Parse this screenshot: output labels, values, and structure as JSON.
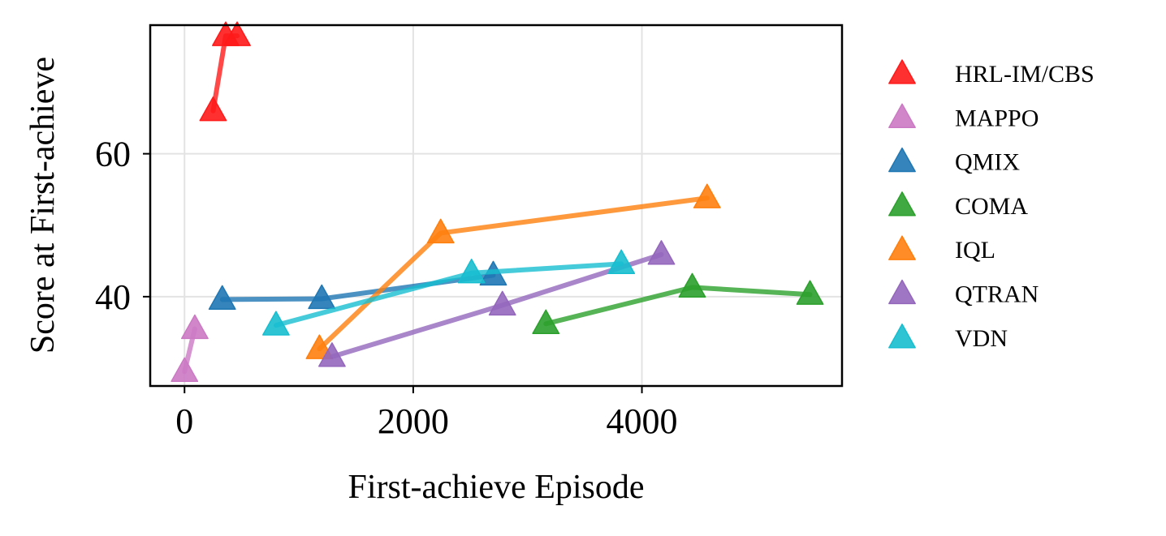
{
  "chart_data": {
    "type": "scatter",
    "xlabel": "First-achieve Episode",
    "ylabel": "Score at First-achieve",
    "xlim": [
      -300,
      5750
    ],
    "ylim": [
      27.5,
      78
    ],
    "xticks": [
      0,
      2000,
      4000
    ],
    "yticks": [
      40,
      60
    ],
    "xtick_labels": [
      "0",
      "2000",
      "4000"
    ],
    "ytick_labels": [
      "40",
      "60"
    ],
    "grid": true,
    "legend_placement": "outside-right",
    "marker": "triangle",
    "series": [
      {
        "name": "HRL-IM/CBS",
        "color": "#ff1a1a",
        "points": [
          [
            250,
            66
          ],
          [
            360,
            76.5
          ],
          [
            460,
            76.5
          ]
        ]
      },
      {
        "name": "MAPPO",
        "color": "#cc79c4",
        "points": [
          [
            0,
            29.5
          ],
          [
            90,
            35.5
          ]
        ]
      },
      {
        "name": "QMIX",
        "color": "#1f77b4",
        "points": [
          [
            330,
            39.6
          ],
          [
            1200,
            39.7
          ],
          [
            2700,
            43
          ]
        ]
      },
      {
        "name": "COMA",
        "color": "#2ca02c",
        "points": [
          [
            3160,
            36.2
          ],
          [
            4440,
            41.3
          ],
          [
            5470,
            40.3
          ]
        ]
      },
      {
        "name": "IQL",
        "color": "#ff7f0e",
        "points": [
          [
            1180,
            32.7
          ],
          [
            2240,
            48.9
          ],
          [
            4570,
            53.8
          ]
        ]
      },
      {
        "name": "QTRAN",
        "color": "#9467bd",
        "points": [
          [
            1290,
            31.6
          ],
          [
            2780,
            38.8
          ],
          [
            4170,
            45.9
          ]
        ]
      },
      {
        "name": "VDN",
        "color": "#17becf",
        "points": [
          [
            800,
            36
          ],
          [
            2510,
            43.3
          ],
          [
            3820,
            44.6
          ]
        ]
      }
    ]
  }
}
